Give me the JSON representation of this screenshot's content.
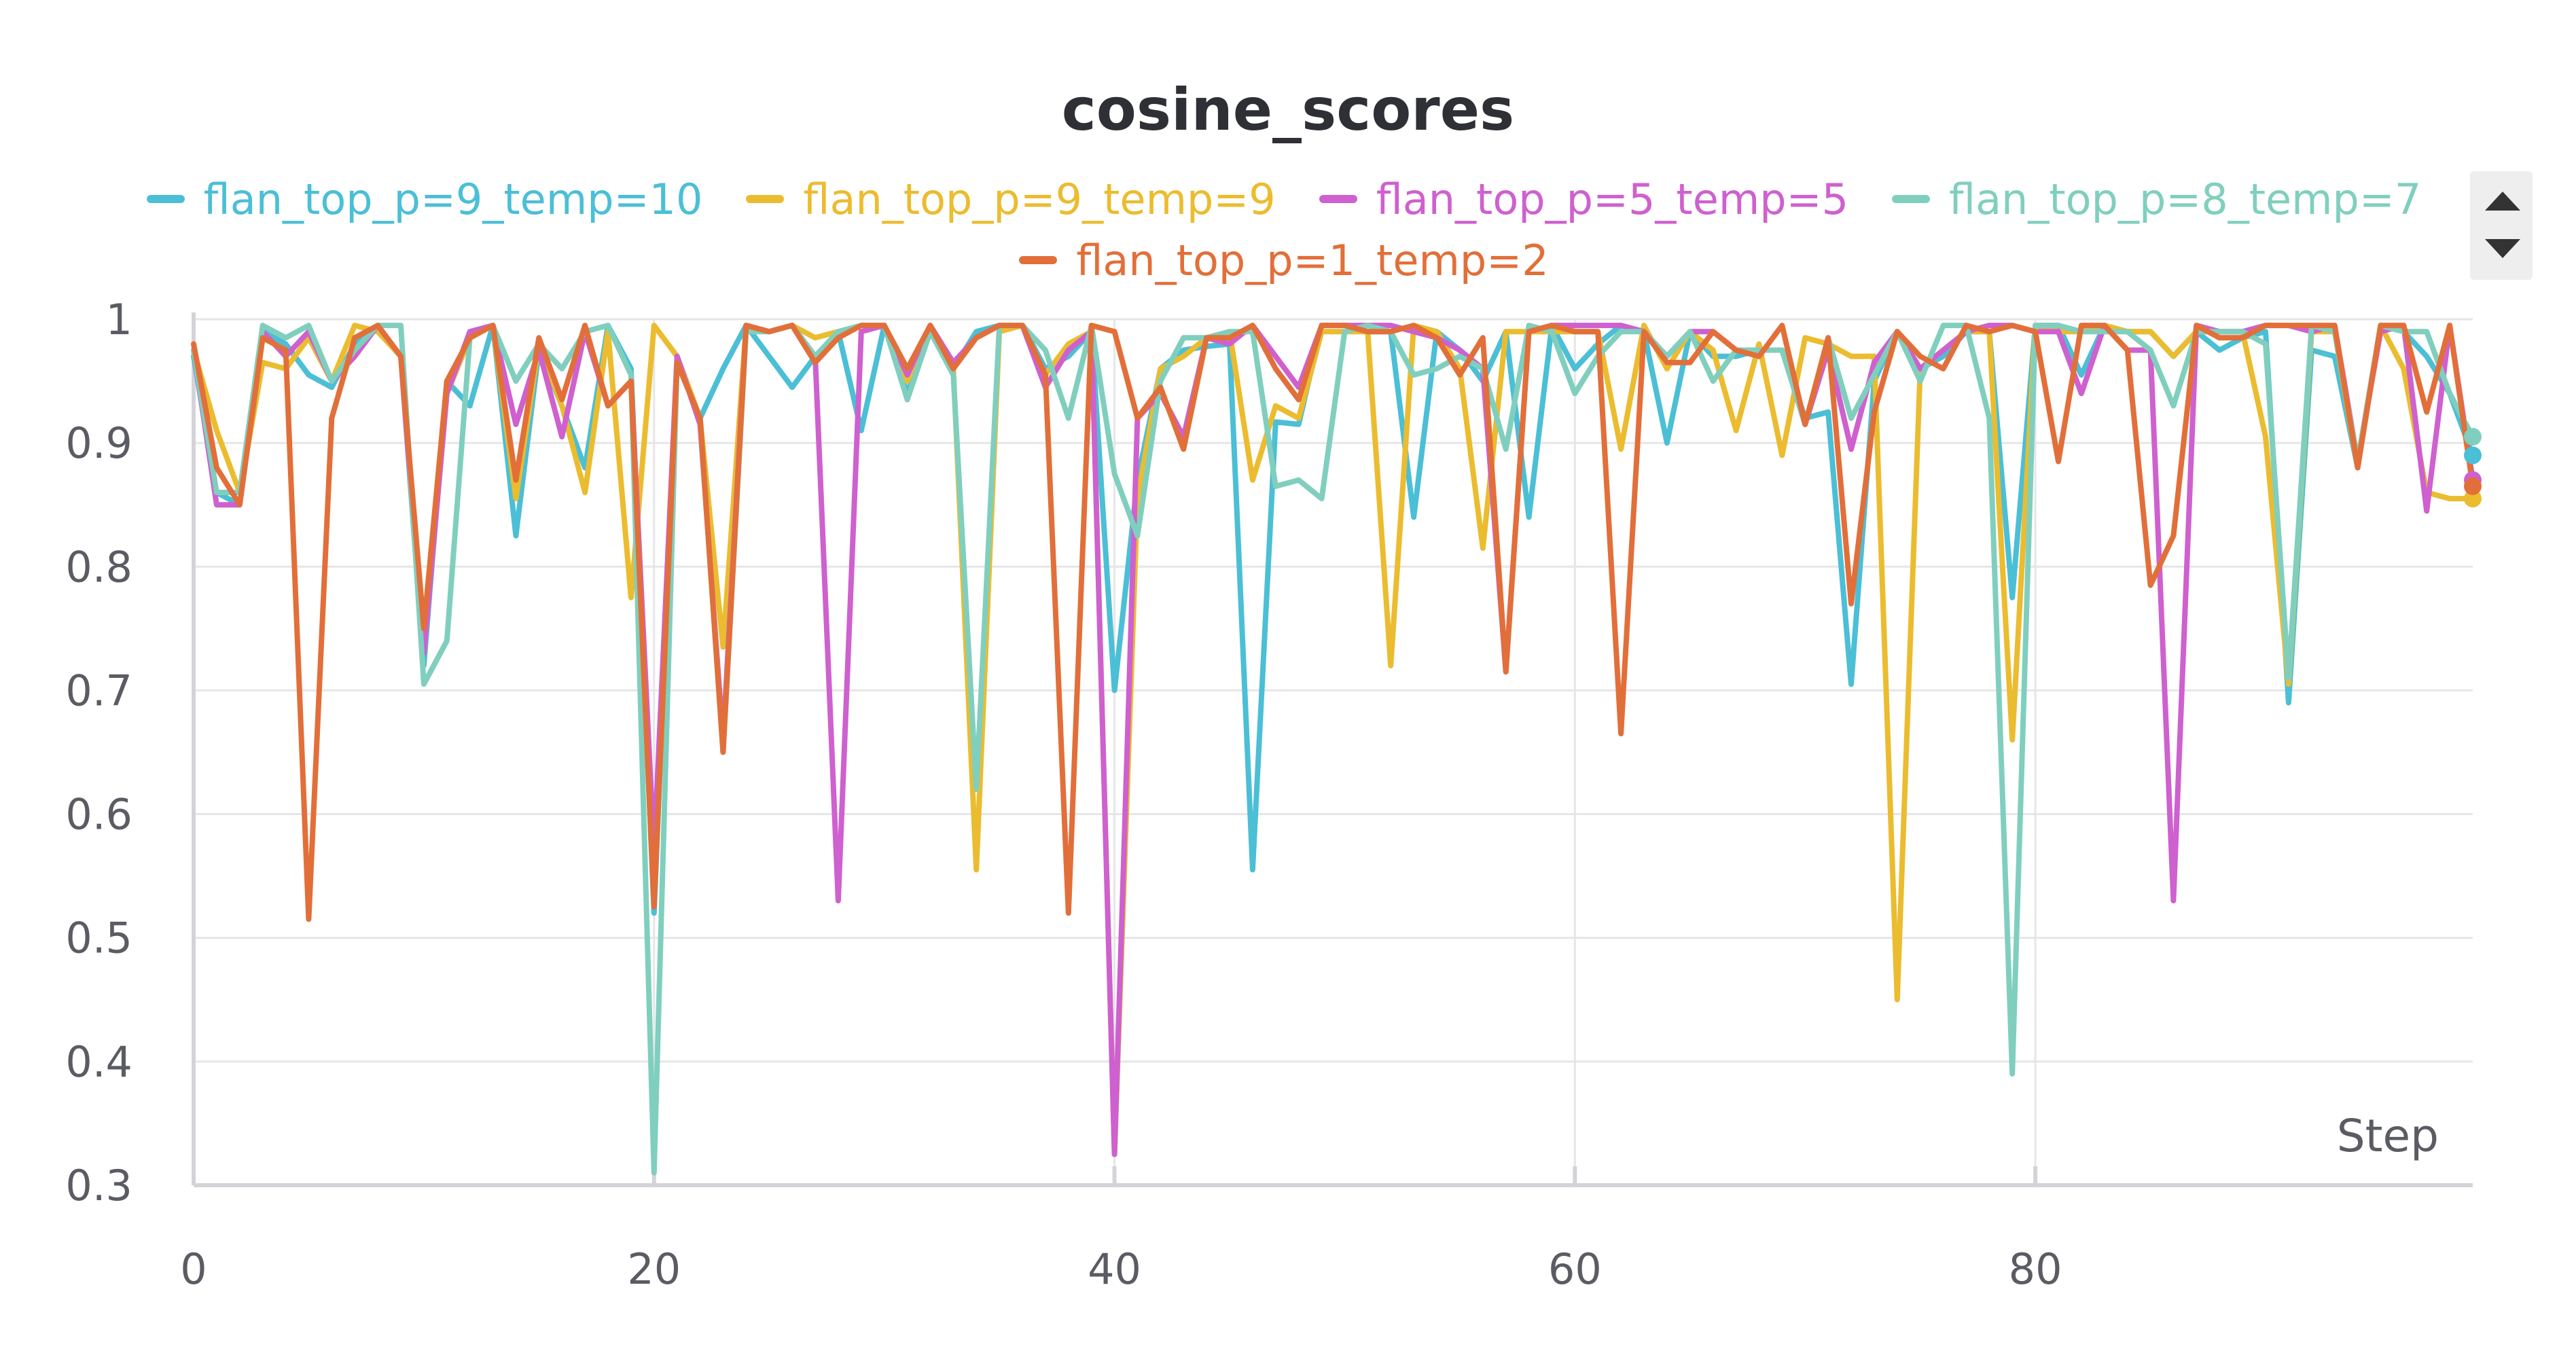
{
  "chart_data": {
    "type": "line",
    "title": "cosine_scores",
    "xlabel": "Step",
    "ylabel": "",
    "xlim": [
      0,
      99
    ],
    "ylim": [
      0.3,
      1.0
    ],
    "xticks": [
      0,
      20,
      40,
      60,
      80
    ],
    "yticks": [
      0.3,
      0.4,
      0.5,
      0.6,
      0.7,
      0.8,
      0.9,
      1
    ],
    "ytick_labels": [
      "0.3",
      "0.4",
      "0.5",
      "0.6",
      "0.7",
      "0.8",
      "0.9",
      "1"
    ],
    "grid": true,
    "legend_position": "top",
    "x": [
      0,
      1,
      2,
      3,
      4,
      5,
      6,
      7,
      8,
      9,
      10,
      11,
      12,
      13,
      14,
      15,
      16,
      17,
      18,
      19,
      20,
      21,
      22,
      23,
      24,
      25,
      26,
      27,
      28,
      29,
      30,
      31,
      32,
      33,
      34,
      35,
      36,
      37,
      38,
      39,
      40,
      41,
      42,
      43,
      44,
      45,
      46,
      47,
      48,
      49,
      50,
      51,
      52,
      53,
      54,
      55,
      56,
      57,
      58,
      59,
      60,
      61,
      62,
      63,
      64,
      65,
      66,
      67,
      68,
      69,
      70,
      71,
      72,
      73,
      74,
      75,
      76,
      77,
      78,
      79,
      80,
      81,
      82,
      83,
      84,
      85,
      86,
      87,
      88,
      89,
      90,
      91,
      92,
      93,
      94,
      95,
      96,
      97,
      98,
      99
    ],
    "series": [
      {
        "name": "flan_top_p=9_temp=10",
        "color": "#4bbfd6",
        "values": [
          0.97,
          0.86,
          0.85,
          0.99,
          0.98,
          0.955,
          0.945,
          0.98,
          0.995,
          0.97,
          0.72,
          0.95,
          0.93,
          0.995,
          0.825,
          0.975,
          0.93,
          0.88,
          0.995,
          0.96,
          0.52,
          0.97,
          0.92,
          0.96,
          0.995,
          0.97,
          0.945,
          0.97,
          0.99,
          0.91,
          0.995,
          0.94,
          0.99,
          0.96,
          0.99,
          0.995,
          0.995,
          0.96,
          0.97,
          0.99,
          0.7,
          0.87,
          0.96,
          0.975,
          0.978,
          0.98,
          0.555,
          0.917,
          0.915,
          0.995,
          0.995,
          0.99,
          0.99,
          0.84,
          0.99,
          0.975,
          0.95,
          0.99,
          0.84,
          0.995,
          0.96,
          0.98,
          0.995,
          0.99,
          0.9,
          0.99,
          0.97,
          0.97,
          0.975,
          0.975,
          0.92,
          0.925,
          0.705,
          0.95,
          0.99,
          0.96,
          0.97,
          0.99,
          0.99,
          0.775,
          0.995,
          0.995,
          0.955,
          0.995,
          0.99,
          0.99,
          0.97,
          0.99,
          0.975,
          0.985,
          0.99,
          0.69,
          0.975,
          0.97,
          0.88,
          0.995,
          0.99,
          0.97,
          0.94,
          0.89
        ]
      },
      {
        "name": "flan_top_p=9_temp=9",
        "color": "#ebbc2f",
        "values": [
          0.975,
          0.91,
          0.86,
          0.965,
          0.96,
          0.985,
          0.95,
          0.995,
          0.99,
          0.97,
          0.73,
          0.94,
          0.985,
          0.995,
          0.855,
          0.98,
          0.93,
          0.86,
          0.99,
          0.775,
          0.995,
          0.97,
          0.92,
          0.735,
          0.995,
          0.99,
          0.995,
          0.985,
          0.99,
          0.995,
          0.995,
          0.95,
          0.99,
          0.96,
          0.555,
          0.99,
          0.995,
          0.955,
          0.98,
          0.99,
          0.325,
          0.855,
          0.96,
          0.97,
          0.985,
          0.99,
          0.87,
          0.93,
          0.92,
          0.99,
          0.99,
          0.99,
          0.72,
          0.995,
          0.99,
          0.96,
          0.815,
          0.99,
          0.99,
          0.99,
          0.99,
          0.99,
          0.895,
          0.995,
          0.96,
          0.99,
          0.975,
          0.91,
          0.98,
          0.89,
          0.985,
          0.98,
          0.97,
          0.97,
          0.45,
          0.96,
          0.975,
          0.99,
          0.99,
          0.66,
          0.995,
          0.99,
          0.99,
          0.995,
          0.99,
          0.99,
          0.97,
          0.99,
          0.99,
          0.99,
          0.905,
          0.705,
          0.99,
          0.99,
          0.88,
          0.995,
          0.96,
          0.86,
          0.855,
          0.855
        ]
      },
      {
        "name": "flan_top_p=5_temp=5",
        "color": "#cf60cf",
        "values": [
          0.975,
          0.85,
          0.85,
          0.99,
          0.97,
          0.99,
          0.95,
          0.97,
          0.995,
          0.97,
          0.73,
          0.94,
          0.99,
          0.995,
          0.915,
          0.975,
          0.905,
          0.99,
          0.93,
          0.95,
          0.57,
          0.97,
          0.915,
          0.66,
          0.995,
          0.99,
          0.995,
          0.97,
          0.53,
          0.99,
          0.995,
          0.955,
          0.995,
          0.965,
          0.985,
          0.995,
          0.995,
          0.945,
          0.975,
          0.99,
          0.325,
          0.92,
          0.94,
          0.905,
          0.985,
          0.98,
          0.995,
          0.97,
          0.945,
          0.995,
          0.995,
          0.995,
          0.995,
          0.99,
          0.985,
          0.975,
          0.96,
          0.715,
          0.99,
          0.995,
          0.995,
          0.995,
          0.995,
          0.99,
          0.97,
          0.99,
          0.99,
          0.975,
          0.975,
          0.975,
          0.915,
          0.975,
          0.895,
          0.965,
          0.99,
          0.96,
          0.975,
          0.99,
          0.995,
          0.995,
          0.99,
          0.99,
          0.94,
          0.995,
          0.975,
          0.975,
          0.53,
          0.995,
          0.99,
          0.99,
          0.995,
          0.995,
          0.99,
          0.995,
          0.885,
          0.99,
          0.995,
          0.845,
          0.995,
          0.87
        ]
      },
      {
        "name": "flan_top_p=8_temp=7",
        "color": "#80cfbe",
        "values": [
          0.975,
          0.86,
          0.86,
          0.995,
          0.985,
          0.995,
          0.95,
          0.975,
          0.995,
          0.995,
          0.705,
          0.74,
          0.985,
          0.995,
          0.95,
          0.98,
          0.96,
          0.99,
          0.995,
          0.955,
          0.31,
          0.965,
          0.92,
          0.65,
          0.99,
          0.99,
          0.995,
          0.97,
          0.99,
          0.995,
          0.995,
          0.935,
          0.99,
          0.955,
          0.62,
          0.995,
          0.995,
          0.975,
          0.92,
          0.995,
          0.875,
          0.825,
          0.95,
          0.985,
          0.985,
          0.99,
          0.99,
          0.865,
          0.87,
          0.855,
          0.99,
          0.995,
          0.99,
          0.955,
          0.96,
          0.97,
          0.96,
          0.895,
          0.995,
          0.99,
          0.94,
          0.97,
          0.99,
          0.99,
          0.97,
          0.99,
          0.95,
          0.975,
          0.975,
          0.975,
          0.915,
          0.985,
          0.92,
          0.955,
          0.99,
          0.95,
          0.995,
          0.995,
          0.92,
          0.39,
          0.995,
          0.995,
          0.99,
          0.99,
          0.99,
          0.975,
          0.93,
          0.99,
          0.99,
          0.99,
          0.98,
          0.71,
          0.995,
          0.99,
          0.885,
          0.995,
          0.99,
          0.99,
          0.94,
          0.905
        ]
      },
      {
        "name": "flan_top_p=1_temp=2",
        "color": "#e26f39",
        "values": [
          0.98,
          0.88,
          0.85,
          0.985,
          0.975,
          0.515,
          0.92,
          0.985,
          0.995,
          0.97,
          0.75,
          0.95,
          0.985,
          0.995,
          0.87,
          0.985,
          0.935,
          0.995,
          0.93,
          0.95,
          0.525,
          0.965,
          0.92,
          0.65,
          0.995,
          0.99,
          0.995,
          0.965,
          0.985,
          0.995,
          0.995,
          0.96,
          0.995,
          0.96,
          0.985,
          0.995,
          0.995,
          0.955,
          0.52,
          0.995,
          0.99,
          0.92,
          0.945,
          0.895,
          0.985,
          0.985,
          0.995,
          0.96,
          0.935,
          0.995,
          0.995,
          0.99,
          0.99,
          0.995,
          0.985,
          0.955,
          0.985,
          0.715,
          0.99,
          0.995,
          0.99,
          0.99,
          0.665,
          0.99,
          0.965,
          0.965,
          0.99,
          0.975,
          0.97,
          0.995,
          0.915,
          0.985,
          0.77,
          0.925,
          0.99,
          0.97,
          0.96,
          0.995,
          0.99,
          0.995,
          0.99,
          0.885,
          0.995,
          0.995,
          0.975,
          0.785,
          0.825,
          0.995,
          0.985,
          0.985,
          0.995,
          0.995,
          0.995,
          0.995,
          0.88,
          0.995,
          0.995,
          0.925,
          0.995,
          0.865
        ]
      }
    ]
  }
}
